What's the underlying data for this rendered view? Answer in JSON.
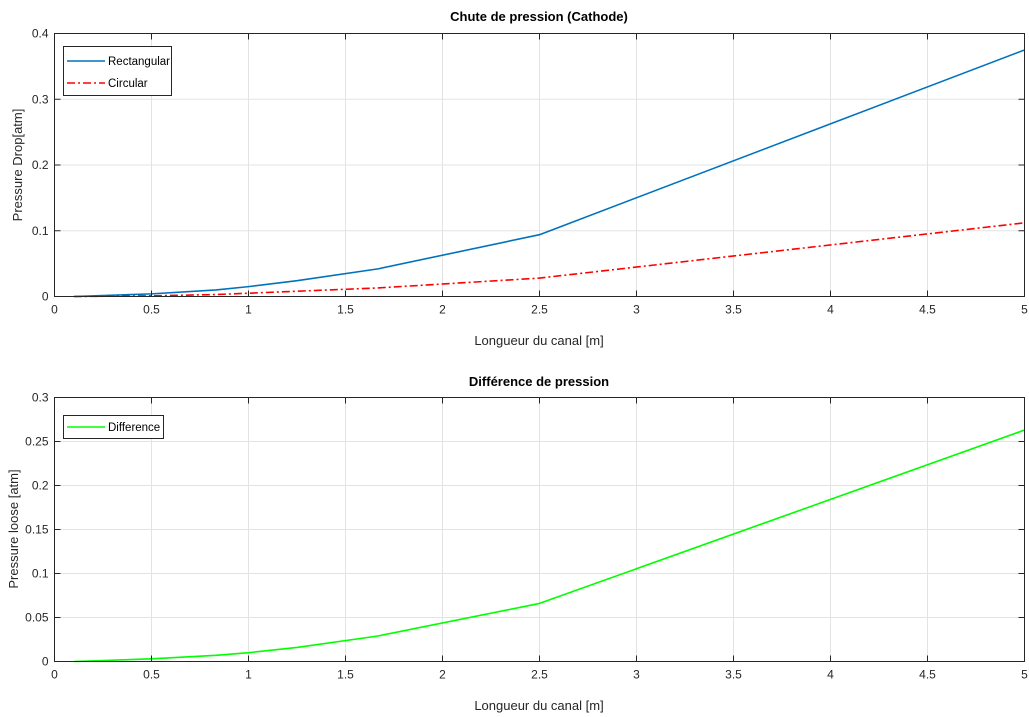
{
  "chart_data": [
    {
      "type": "line",
      "title": "Chute de pression (Cathode)",
      "xlabel": "Longueur du canal [m]",
      "ylabel": "Pressure Drop[atm]",
      "xlim": [
        0,
        5
      ],
      "ylim": [
        0,
        0.4
      ],
      "xticks": [
        0,
        0.5,
        1,
        1.5,
        2,
        2.5,
        3,
        3.5,
        4,
        4.5,
        5
      ],
      "xtick_labels": [
        "0",
        "0.5",
        "1",
        "1.5",
        "2",
        "2.5",
        "3",
        "3.5",
        "4",
        "4.5",
        "5"
      ],
      "yticks": [
        0,
        0.1,
        0.2,
        0.3,
        0.4
      ],
      "ytick_labels": [
        "0",
        "0.1",
        "0.2",
        "0.3",
        "0.4"
      ],
      "grid": true,
      "legend_position": "top-left",
      "series": [
        {
          "name": "Rectangular",
          "color": "#0072BD",
          "line_style": "solid",
          "x": [
            0.1,
            0.5,
            0.833,
            1.0,
            1.25,
            1.667,
            2.5,
            5.0
          ],
          "y": [
            0.0,
            0.004,
            0.01,
            0.015,
            0.024,
            0.042,
            0.094,
            0.375
          ]
        },
        {
          "name": "Circular",
          "color": "#FF0000",
          "line_style": "dashdot",
          "x": [
            0.1,
            0.5,
            0.833,
            1.0,
            1.25,
            1.667,
            2.5,
            5.0
          ],
          "y": [
            0.0,
            0.001,
            0.003,
            0.005,
            0.008,
            0.013,
            0.028,
            0.112
          ]
        }
      ]
    },
    {
      "type": "line",
      "title": "Différence de pression",
      "xlabel": "Longueur du canal [m]",
      "ylabel": "Pressure loose [atm]",
      "xlim": [
        0,
        5
      ],
      "ylim": [
        0,
        0.3
      ],
      "xticks": [
        0,
        0.5,
        1,
        1.5,
        2,
        2.5,
        3,
        3.5,
        4,
        4.5,
        5
      ],
      "xtick_labels": [
        "0",
        "0.5",
        "1",
        "1.5",
        "2",
        "2.5",
        "3",
        "3.5",
        "4",
        "4.5",
        "5"
      ],
      "yticks": [
        0,
        0.05,
        0.1,
        0.15,
        0.2,
        0.25,
        0.3
      ],
      "ytick_labels": [
        "0",
        "0.05",
        "0.1",
        "0.15",
        "0.2",
        "0.25",
        "0.3"
      ],
      "grid": true,
      "legend_position": "top-left",
      "series": [
        {
          "name": "Difference",
          "color": "#00FF00",
          "line_style": "solid",
          "x": [
            0.1,
            0.5,
            0.833,
            1.0,
            1.25,
            1.667,
            2.5,
            5.0
          ],
          "y": [
            0.0,
            0.003,
            0.007,
            0.01,
            0.016,
            0.029,
            0.066,
            0.263
          ]
        }
      ]
    }
  ]
}
